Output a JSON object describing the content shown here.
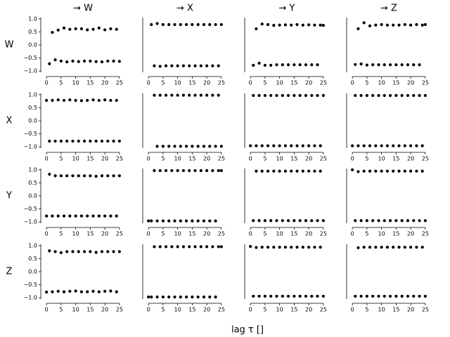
{
  "figure": {
    "xlabel": "lag τ []"
  },
  "chart_data": [
    {
      "type": "scatter",
      "title": "→ W",
      "ylabel": "W",
      "color": "#000000",
      "xlim": [
        -1,
        26
      ],
      "ylim": [
        -1.05,
        1.05
      ],
      "xticks": [
        0,
        5,
        10,
        15,
        20,
        25
      ],
      "yticks": [
        {
          "value": -1,
          "label": "−1.0"
        },
        {
          "value": -0.5,
          "label": "−0.5"
        },
        {
          "value": 0,
          "label": "0.0"
        },
        {
          "value": 0.5,
          "label": "0.5"
        },
        {
          "value": 1,
          "label": "1.0"
        }
      ],
      "x": [
        1,
        2,
        3,
        4,
        5,
        6,
        7,
        8,
        9,
        10,
        11,
        12,
        13,
        14,
        15,
        16,
        17,
        18,
        19,
        20,
        21,
        22,
        23,
        24,
        25
      ],
      "y": [
        -0.72,
        0.48,
        -0.57,
        0.57,
        -0.62,
        0.65,
        -0.65,
        0.6,
        -0.62,
        0.62,
        -0.64,
        0.62,
        -0.62,
        0.58,
        -0.62,
        0.6,
        -0.64,
        0.65,
        -0.65,
        0.58,
        -0.62,
        0.62,
        -0.62,
        0.6,
        -0.63
      ]
    },
    {
      "type": "scatter",
      "title": "→ X",
      "color": "#000000",
      "xlim": [
        -1,
        26
      ],
      "ylim": [
        -1.05,
        1.05
      ],
      "xticks": [
        0,
        5,
        10,
        15,
        20,
        25
      ],
      "x": [
        1,
        2,
        3,
        4,
        5,
        6,
        7,
        8,
        9,
        10,
        11,
        12,
        13,
        14,
        15,
        16,
        17,
        18,
        19,
        20,
        21,
        22,
        23,
        24,
        25
      ],
      "y": [
        0.78,
        -0.8,
        0.82,
        -0.82,
        0.78,
        -0.8,
        0.78,
        -0.8,
        0.78,
        -0.8,
        0.78,
        -0.8,
        0.78,
        -0.8,
        0.78,
        -0.8,
        0.78,
        -0.8,
        0.78,
        -0.8,
        0.78,
        -0.8,
        0.78,
        -0.8,
        0.78
      ]
    },
    {
      "type": "scatter",
      "title": "→ Y",
      "color": "#000000",
      "xlim": [
        -1,
        26
      ],
      "ylim": [
        -1.05,
        1.05
      ],
      "xticks": [
        0,
        5,
        10,
        15,
        20,
        25
      ],
      "x": [
        1,
        2,
        3,
        4,
        5,
        6,
        7,
        8,
        9,
        10,
        11,
        12,
        13,
        14,
        15,
        16,
        17,
        18,
        19,
        20,
        21,
        22,
        23,
        24,
        25
      ],
      "y": [
        -0.78,
        0.62,
        -0.7,
        0.8,
        -0.78,
        0.78,
        -0.78,
        0.75,
        -0.76,
        0.76,
        -0.76,
        0.77,
        -0.76,
        0.76,
        -0.76,
        0.78,
        -0.76,
        0.76,
        -0.76,
        0.77,
        -0.76,
        0.76,
        -0.76,
        0.76,
        0.75
      ]
    },
    {
      "type": "scatter",
      "title": "→ Z",
      "color": "#000000",
      "xlim": [
        -1,
        26
      ],
      "ylim": [
        -1.05,
        1.05
      ],
      "xticks": [
        0,
        5,
        10,
        15,
        20,
        25
      ],
      "x": [
        1,
        2,
        3,
        4,
        5,
        6,
        7,
        8,
        9,
        10,
        11,
        12,
        13,
        14,
        15,
        16,
        17,
        18,
        19,
        20,
        21,
        22,
        23,
        24,
        25
      ],
      "y": [
        -0.75,
        0.62,
        -0.73,
        0.85,
        -0.77,
        0.73,
        -0.76,
        0.76,
        -0.76,
        0.78,
        -0.76,
        0.76,
        -0.76,
        0.76,
        -0.76,
        0.76,
        -0.76,
        0.78,
        -0.76,
        0.76,
        -0.76,
        0.78,
        -0.76,
        0.76,
        0.78
      ]
    },
    {
      "type": "scatter",
      "ylabel": "X",
      "color": "#000000",
      "xlim": [
        -1,
        26
      ],
      "ylim": [
        -1.05,
        1.05
      ],
      "xticks": [
        0,
        5,
        10,
        15,
        20,
        25
      ],
      "yticks": [
        {
          "value": -1,
          "label": "−1.0"
        },
        {
          "value": -0.5,
          "label": "−0.5"
        },
        {
          "value": 0,
          "label": "0.0"
        },
        {
          "value": 0.5,
          "label": "0.5"
        },
        {
          "value": 1,
          "label": "1.0"
        }
      ],
      "x": [
        0,
        1,
        2,
        3,
        4,
        5,
        6,
        7,
        8,
        9,
        10,
        11,
        12,
        13,
        14,
        15,
        16,
        17,
        18,
        19,
        20,
        21,
        22,
        23,
        24,
        25
      ],
      "y": [
        0.78,
        -0.78,
        0.78,
        -0.78,
        0.8,
        -0.78,
        0.78,
        -0.78,
        0.8,
        -0.78,
        0.78,
        -0.78,
        0.77,
        -0.78,
        0.78,
        -0.78,
        0.8,
        -0.78,
        0.78,
        -0.78,
        0.8,
        -0.78,
        0.78,
        -0.78,
        0.78,
        -0.78
      ]
    },
    {
      "type": "scatter",
      "color": "#000000",
      "xlim": [
        -1,
        26
      ],
      "ylim": [
        -1.05,
        1.05
      ],
      "xticks": [
        0,
        5,
        10,
        15,
        20,
        25
      ],
      "x": [
        2,
        3,
        4,
        5,
        6,
        7,
        8,
        9,
        10,
        11,
        12,
        13,
        14,
        15,
        16,
        17,
        18,
        19,
        20,
        21,
        22,
        23,
        24,
        25
      ],
      "y": [
        0.98,
        -0.98,
        0.98,
        -0.98,
        0.98,
        -0.98,
        0.98,
        -0.98,
        0.98,
        -0.98,
        0.98,
        -0.98,
        0.98,
        -0.98,
        0.98,
        -0.98,
        0.98,
        -0.98,
        0.98,
        -0.98,
        0.98,
        -0.98,
        0.98,
        -0.98
      ]
    },
    {
      "type": "scatter",
      "color": "#000000",
      "xlim": [
        -1,
        26
      ],
      "ylim": [
        -1.05,
        1.05
      ],
      "xticks": [
        0,
        5,
        10,
        15,
        20,
        25
      ],
      "x": [
        0,
        1,
        2,
        3,
        4,
        5,
        6,
        7,
        8,
        9,
        10,
        11,
        12,
        13,
        14,
        15,
        16,
        17,
        18,
        19,
        20,
        21,
        22,
        23,
        24,
        25
      ],
      "y": [
        -0.96,
        0.97,
        -0.96,
        0.97,
        -0.96,
        0.97,
        -0.96,
        0.97,
        -0.96,
        0.97,
        -0.96,
        0.97,
        -0.96,
        0.97,
        -0.96,
        0.97,
        -0.96,
        0.97,
        -0.96,
        0.97,
        -0.96,
        0.97,
        -0.96,
        0.97,
        -0.96,
        0.97
      ]
    },
    {
      "type": "scatter",
      "color": "#000000",
      "xlim": [
        -1,
        26
      ],
      "ylim": [
        -1.05,
        1.05
      ],
      "xticks": [
        0,
        5,
        10,
        15,
        20,
        25
      ],
      "x": [
        0,
        1,
        2,
        3,
        4,
        5,
        6,
        7,
        8,
        9,
        10,
        11,
        12,
        13,
        14,
        15,
        16,
        17,
        18,
        19,
        20,
        21,
        22,
        23,
        24,
        25
      ],
      "y": [
        -0.96,
        0.97,
        -0.96,
        0.97,
        -0.96,
        0.97,
        -0.96,
        0.97,
        -0.96,
        0.97,
        -0.96,
        0.97,
        -0.96,
        0.97,
        -0.96,
        0.97,
        -0.96,
        0.97,
        -0.96,
        0.97,
        -0.96,
        0.97,
        -0.96,
        0.97,
        -0.96,
        0.97
      ]
    },
    {
      "type": "scatter",
      "ylabel": "Y",
      "color": "#000000",
      "xlim": [
        -1,
        26
      ],
      "ylim": [
        -1.05,
        1.05
      ],
      "xticks": [
        0,
        5,
        10,
        15,
        20,
        25
      ],
      "yticks": [
        {
          "value": -1,
          "label": "−1.0"
        },
        {
          "value": -0.5,
          "label": "−0.5"
        },
        {
          "value": 0,
          "label": "0.0"
        },
        {
          "value": 0.5,
          "label": "0.5"
        },
        {
          "value": 1,
          "label": "1.0"
        }
      ],
      "x": [
        0,
        1,
        2,
        3,
        4,
        5,
        6,
        7,
        8,
        9,
        10,
        11,
        12,
        13,
        14,
        15,
        16,
        17,
        18,
        19,
        20,
        21,
        22,
        23,
        24,
        25
      ],
      "y": [
        -0.77,
        0.83,
        -0.77,
        0.77,
        -0.77,
        0.77,
        -0.77,
        0.77,
        -0.77,
        0.77,
        -0.77,
        0.77,
        -0.77,
        0.77,
        -0.77,
        0.77,
        -0.77,
        0.75,
        -0.77,
        0.77,
        -0.77,
        0.77,
        -0.77,
        0.77,
        -0.77,
        0.77
      ]
    },
    {
      "type": "scatter",
      "color": "#000000",
      "xlim": [
        -1,
        26
      ],
      "ylim": [
        -1.05,
        1.05
      ],
      "xticks": [
        0,
        5,
        10,
        15,
        20,
        25
      ],
      "x": [
        0,
        1,
        2,
        3,
        4,
        5,
        6,
        7,
        8,
        9,
        10,
        11,
        12,
        13,
        14,
        15,
        16,
        17,
        18,
        19,
        20,
        21,
        22,
        23,
        24,
        25
      ],
      "y": [
        -0.96,
        -0.96,
        0.97,
        -0.96,
        0.97,
        -0.96,
        0.97,
        -0.96,
        0.97,
        -0.96,
        0.97,
        -0.96,
        0.97,
        -0.96,
        0.97,
        -0.96,
        0.97,
        -0.96,
        0.97,
        -0.96,
        0.97,
        -0.96,
        0.97,
        -0.96,
        0.97,
        0.97
      ]
    },
    {
      "type": "scatter",
      "color": "#000000",
      "xlim": [
        -1,
        26
      ],
      "ylim": [
        -1.05,
        1.05
      ],
      "xticks": [
        0,
        5,
        10,
        15,
        20,
        25
      ],
      "x": [
        1,
        2,
        3,
        4,
        5,
        6,
        7,
        8,
        9,
        10,
        11,
        12,
        13,
        14,
        15,
        16,
        17,
        18,
        19,
        20,
        21,
        22,
        23,
        24,
        25
      ],
      "y": [
        -0.95,
        0.95,
        -0.95,
        0.95,
        -0.95,
        0.95,
        -0.95,
        0.95,
        -0.95,
        0.95,
        -0.95,
        0.95,
        -0.95,
        0.95,
        -0.95,
        0.95,
        -0.95,
        0.95,
        -0.95,
        0.95,
        -0.95,
        0.95,
        -0.95,
        0.95,
        -0.95
      ]
    },
    {
      "type": "scatter",
      "color": "#000000",
      "xlim": [
        -1,
        26
      ],
      "ylim": [
        -1.05,
        1.05
      ],
      "xticks": [
        0,
        5,
        10,
        15,
        20,
        25
      ],
      "x": [
        0,
        1,
        2,
        3,
        4,
        5,
        6,
        7,
        8,
        9,
        10,
        11,
        12,
        13,
        14,
        15,
        16,
        17,
        18,
        19,
        20,
        21,
        22,
        23,
        24,
        25
      ],
      "y": [
        1.0,
        -0.95,
        0.93,
        -0.95,
        0.95,
        -0.95,
        0.95,
        -0.95,
        0.95,
        -0.95,
        0.95,
        -0.95,
        0.95,
        -0.95,
        0.95,
        -0.95,
        0.95,
        -0.95,
        0.95,
        -0.95,
        0.95,
        -0.95,
        0.95,
        -0.95,
        0.95,
        -0.95
      ]
    },
    {
      "type": "scatter",
      "ylabel": "Z",
      "color": "#000000",
      "xlim": [
        -1,
        26
      ],
      "ylim": [
        -1.05,
        1.05
      ],
      "xticks": [
        0,
        5,
        10,
        15,
        20,
        25
      ],
      "yticks": [
        {
          "value": -1,
          "label": "−1.0"
        },
        {
          "value": -0.5,
          "label": "−0.5"
        },
        {
          "value": 0,
          "label": "0.0"
        },
        {
          "value": 0.5,
          "label": "0.5"
        },
        {
          "value": 1,
          "label": "1.0"
        }
      ],
      "x": [
        0,
        1,
        2,
        3,
        4,
        5,
        6,
        7,
        8,
        9,
        10,
        11,
        12,
        13,
        14,
        15,
        16,
        17,
        18,
        19,
        20,
        21,
        22,
        23,
        24,
        25
      ],
      "y": [
        -0.78,
        0.8,
        -0.77,
        0.77,
        -0.75,
        0.73,
        -0.77,
        0.77,
        -0.75,
        0.77,
        -0.74,
        0.77,
        -0.77,
        0.77,
        -0.77,
        0.77,
        -0.75,
        0.74,
        -0.77,
        0.77,
        -0.75,
        0.77,
        -0.74,
        0.77,
        -0.77,
        0.77
      ]
    },
    {
      "type": "scatter",
      "color": "#000000",
      "xlim": [
        -1,
        26
      ],
      "ylim": [
        -1.05,
        1.05
      ],
      "xticks": [
        0,
        5,
        10,
        15,
        20,
        25
      ],
      "x": [
        0,
        1,
        2,
        3,
        4,
        5,
        6,
        7,
        8,
        9,
        10,
        11,
        12,
        13,
        14,
        15,
        16,
        17,
        18,
        19,
        20,
        21,
        22,
        23,
        24,
        25
      ],
      "y": [
        -0.97,
        -0.97,
        0.96,
        -0.97,
        0.96,
        -0.97,
        0.96,
        -0.97,
        0.96,
        -0.97,
        0.96,
        -0.97,
        0.96,
        -0.97,
        0.96,
        -0.97,
        0.96,
        -0.97,
        0.96,
        -0.97,
        0.96,
        -0.97,
        0.96,
        -0.97,
        0.96,
        0.96
      ]
    },
    {
      "type": "scatter",
      "color": "#000000",
      "xlim": [
        -1,
        26
      ],
      "ylim": [
        -1.05,
        1.05
      ],
      "xticks": [
        0,
        5,
        10,
        15,
        20,
        25
      ],
      "x": [
        0,
        1,
        2,
        3,
        4,
        5,
        6,
        7,
        8,
        9,
        10,
        11,
        12,
        13,
        14,
        15,
        16,
        17,
        18,
        19,
        20,
        21,
        22,
        23,
        24,
        25
      ],
      "y": [
        0.97,
        -0.94,
        0.93,
        -0.94,
        0.94,
        -0.94,
        0.94,
        -0.94,
        0.94,
        -0.94,
        0.94,
        -0.94,
        0.94,
        -0.94,
        0.94,
        -0.94,
        0.94,
        -0.94,
        0.94,
        -0.94,
        0.94,
        -0.94,
        0.94,
        -0.94,
        0.94,
        -0.94
      ]
    },
    {
      "type": "scatter",
      "color": "#000000",
      "xlim": [
        -1,
        26
      ],
      "ylim": [
        -1.05,
        1.05
      ],
      "xticks": [
        0,
        5,
        10,
        15,
        20,
        25
      ],
      "x": [
        1,
        2,
        3,
        4,
        5,
        6,
        7,
        8,
        9,
        10,
        11,
        12,
        13,
        14,
        15,
        16,
        17,
        18,
        19,
        20,
        21,
        22,
        23,
        24,
        25
      ],
      "y": [
        -0.94,
        0.92,
        -0.94,
        0.94,
        -0.94,
        0.94,
        -0.94,
        0.94,
        -0.94,
        0.94,
        -0.94,
        0.94,
        -0.94,
        0.94,
        -0.94,
        0.94,
        -0.94,
        0.94,
        -0.94,
        0.94,
        -0.94,
        0.94,
        -0.94,
        0.94,
        -0.94
      ]
    }
  ]
}
